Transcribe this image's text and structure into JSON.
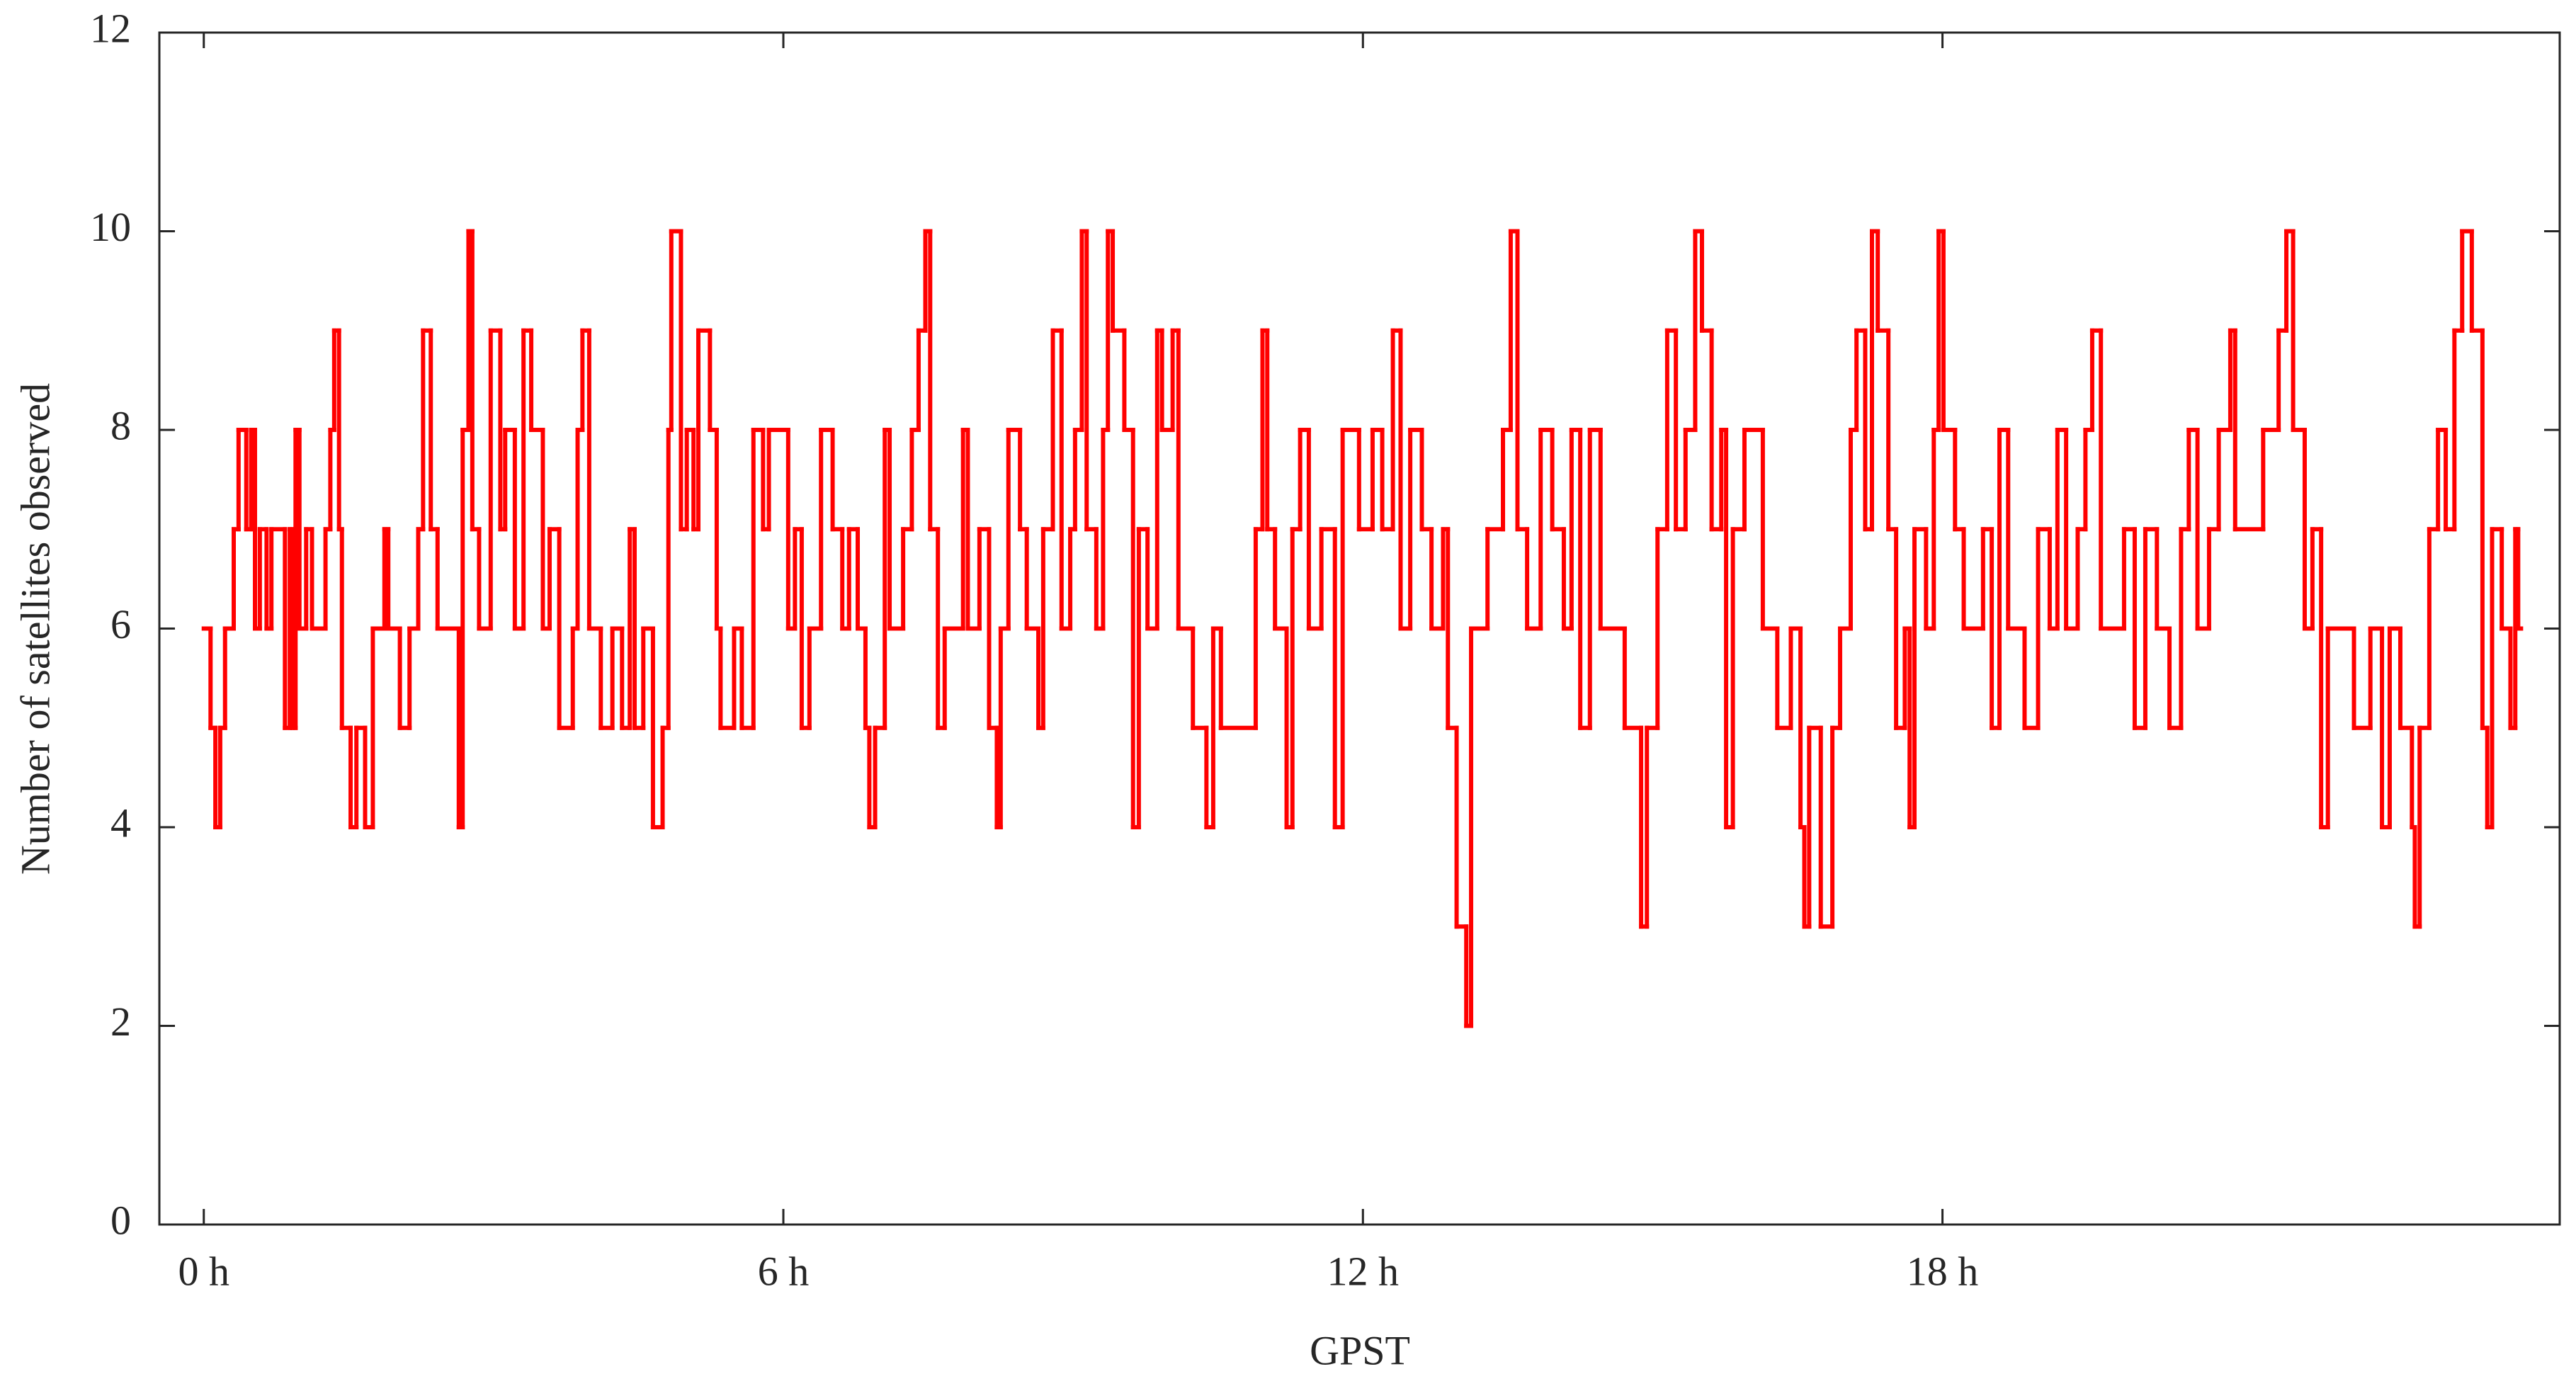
{
  "chart_data": {
    "type": "line",
    "drawstyle": "steps-post",
    "color": "#ff0000",
    "xlabel": "GPST",
    "ylabel": "Number of satellites observed",
    "xlim": [
      -0.46,
      24.39
    ],
    "ylim": [
      0,
      12
    ],
    "xticks": [
      {
        "value": 0,
        "label": "0 h"
      },
      {
        "value": 6,
        "label": "6 h"
      },
      {
        "value": 12,
        "label": "12 h"
      },
      {
        "value": 18,
        "label": "18 h"
      }
    ],
    "yticks": [
      0,
      2,
      4,
      6,
      8,
      10,
      12
    ],
    "x": [
      0.0,
      0.07,
      0.12,
      0.17,
      0.22,
      0.31,
      0.36,
      0.44,
      0.49,
      0.53,
      0.58,
      0.65,
      0.7,
      0.84,
      0.89,
      0.92,
      0.95,
      0.99,
      1.06,
      1.12,
      1.26,
      1.31,
      1.35,
      1.4,
      1.43,
      1.52,
      1.58,
      1.67,
      1.75,
      1.87,
      1.91,
      2.03,
      2.13,
      2.22,
      2.27,
      2.35,
      2.42,
      2.64,
      2.68,
      2.74,
      2.78,
      2.85,
      2.97,
      3.07,
      3.12,
      3.22,
      3.31,
      3.39,
      3.51,
      3.58,
      3.68,
      3.82,
      3.87,
      3.92,
      3.99,
      4.11,
      4.23,
      4.33,
      4.41,
      4.46,
      4.55,
      4.65,
      4.75,
      4.81,
      4.84,
      4.94,
      5.0,
      5.07,
      5.12,
      5.24,
      5.31,
      5.35,
      5.49,
      5.57,
      5.69,
      5.79,
      5.85,
      6.05,
      6.12,
      6.19,
      6.27,
      6.39,
      6.51,
      6.61,
      6.68,
      6.77,
      6.85,
      6.89,
      6.95,
      7.05,
      7.1,
      7.24,
      7.33,
      7.4,
      7.47,
      7.52,
      7.6,
      7.67,
      7.86,
      7.91,
      8.03,
      8.13,
      8.21,
      8.25,
      8.33,
      8.45,
      8.52,
      8.64,
      8.69,
      8.79,
      8.88,
      8.97,
      9.02,
      9.09,
      9.14,
      9.24,
      9.31,
      9.36,
      9.41,
      9.53,
      9.62,
      9.68,
      9.77,
      9.87,
      9.92,
      10.03,
      10.09,
      10.24,
      10.38,
      10.45,
      10.53,
      10.89,
      10.96,
      11.01,
      11.09,
      11.21,
      11.27,
      11.35,
      11.44,
      11.57,
      11.71,
      11.79,
      11.96,
      12.1,
      12.2,
      12.31,
      12.39,
      12.49,
      12.61,
      12.71,
      12.83,
      12.88,
      12.97,
      13.07,
      13.12,
      13.29,
      13.45,
      13.53,
      13.6,
      13.7,
      13.84,
      13.96,
      14.08,
      14.16,
      14.25,
      14.35,
      14.46,
      14.71,
      14.88,
      14.94,
      15.05,
      15.15,
      15.24,
      15.34,
      15.44,
      15.51,
      15.61,
      15.71,
      15.76,
      15.83,
      15.95,
      16.14,
      16.29,
      16.43,
      16.53,
      16.57,
      16.62,
      16.74,
      16.86,
      16.94,
      17.05,
      17.11,
      17.2,
      17.27,
      17.33,
      17.44,
      17.52,
      17.61,
      17.66,
      17.71,
      17.83,
      17.91,
      17.96,
      18.01,
      18.13,
      18.22,
      18.42,
      18.51,
      18.59,
      18.68,
      18.85,
      18.99,
      19.11,
      19.19,
      19.28,
      19.4,
      19.48,
      19.55,
      19.64,
      19.88,
      19.99,
      20.1,
      20.22,
      20.35,
      20.47,
      20.55,
      20.64,
      20.76,
      20.86,
      20.98,
      21.03,
      21.32,
      21.48,
      21.56,
      21.63,
      21.75,
      21.83,
      21.92,
      21.99,
      22.26,
      22.43,
      22.55,
      22.63,
      22.74,
      22.86,
      22.89,
      22.94,
      23.04,
      23.13,
      23.21,
      23.3,
      23.38,
      23.48,
      23.59,
      23.64,
      23.69,
      23.79,
      23.88,
      23.93,
      23.96
    ],
    "values": [
      6,
      5,
      4,
      5,
      6,
      7,
      8,
      7,
      8,
      6,
      7,
      6,
      7,
      5,
      7,
      5,
      8,
      6,
      7,
      6,
      7,
      8,
      9,
      7,
      5,
      4,
      5,
      4,
      6,
      7,
      6,
      5,
      6,
      7,
      9,
      7,
      6,
      4,
      8,
      10,
      7,
      6,
      9,
      7,
      8,
      6,
      9,
      8,
      6,
      7,
      5,
      6,
      8,
      9,
      6,
      5,
      6,
      5,
      7,
      5,
      6,
      4,
      5,
      8,
      10,
      7,
      8,
      7,
      9,
      8,
      6,
      5,
      6,
      5,
      8,
      7,
      8,
      6,
      7,
      5,
      6,
      8,
      7,
      6,
      7,
      6,
      5,
      4,
      5,
      8,
      6,
      7,
      8,
      9,
      10,
      7,
      5,
      6,
      8,
      6,
      7,
      5,
      4,
      6,
      8,
      7,
      6,
      5,
      7,
      9,
      6,
      7,
      8,
      10,
      7,
      6,
      8,
      10,
      9,
      8,
      4,
      7,
      6,
      9,
      8,
      9,
      6,
      5,
      4,
      6,
      5,
      7,
      9,
      7,
      6,
      4,
      7,
      8,
      6,
      7,
      4,
      8,
      7,
      8,
      7,
      9,
      6,
      8,
      7,
      6,
      7,
      5,
      3,
      2,
      6,
      7,
      8,
      10,
      7,
      6,
      8,
      7,
      6,
      8,
      5,
      8,
      6,
      5,
      3,
      5,
      7,
      9,
      7,
      8,
      10,
      9,
      7,
      8,
      4,
      7,
      8,
      6,
      5,
      6,
      4,
      3,
      5,
      3,
      5,
      6,
      8,
      9,
      7,
      10,
      9,
      7,
      5,
      6,
      4,
      7,
      6,
      8,
      10,
      8,
      7,
      6,
      7,
      5,
      8,
      6,
      5,
      7,
      6,
      8,
      6,
      7,
      8,
      9,
      6,
      7,
      5,
      7,
      6,
      5,
      7,
      8,
      6,
      7,
      8,
      9,
      7,
      8,
      9,
      10,
      8,
      6,
      7,
      4,
      6,
      5,
      6,
      4,
      6,
      5,
      4,
      3,
      5,
      7,
      8,
      7,
      9,
      10,
      9,
      5,
      4,
      7,
      6,
      5,
      7,
      6
    ]
  }
}
